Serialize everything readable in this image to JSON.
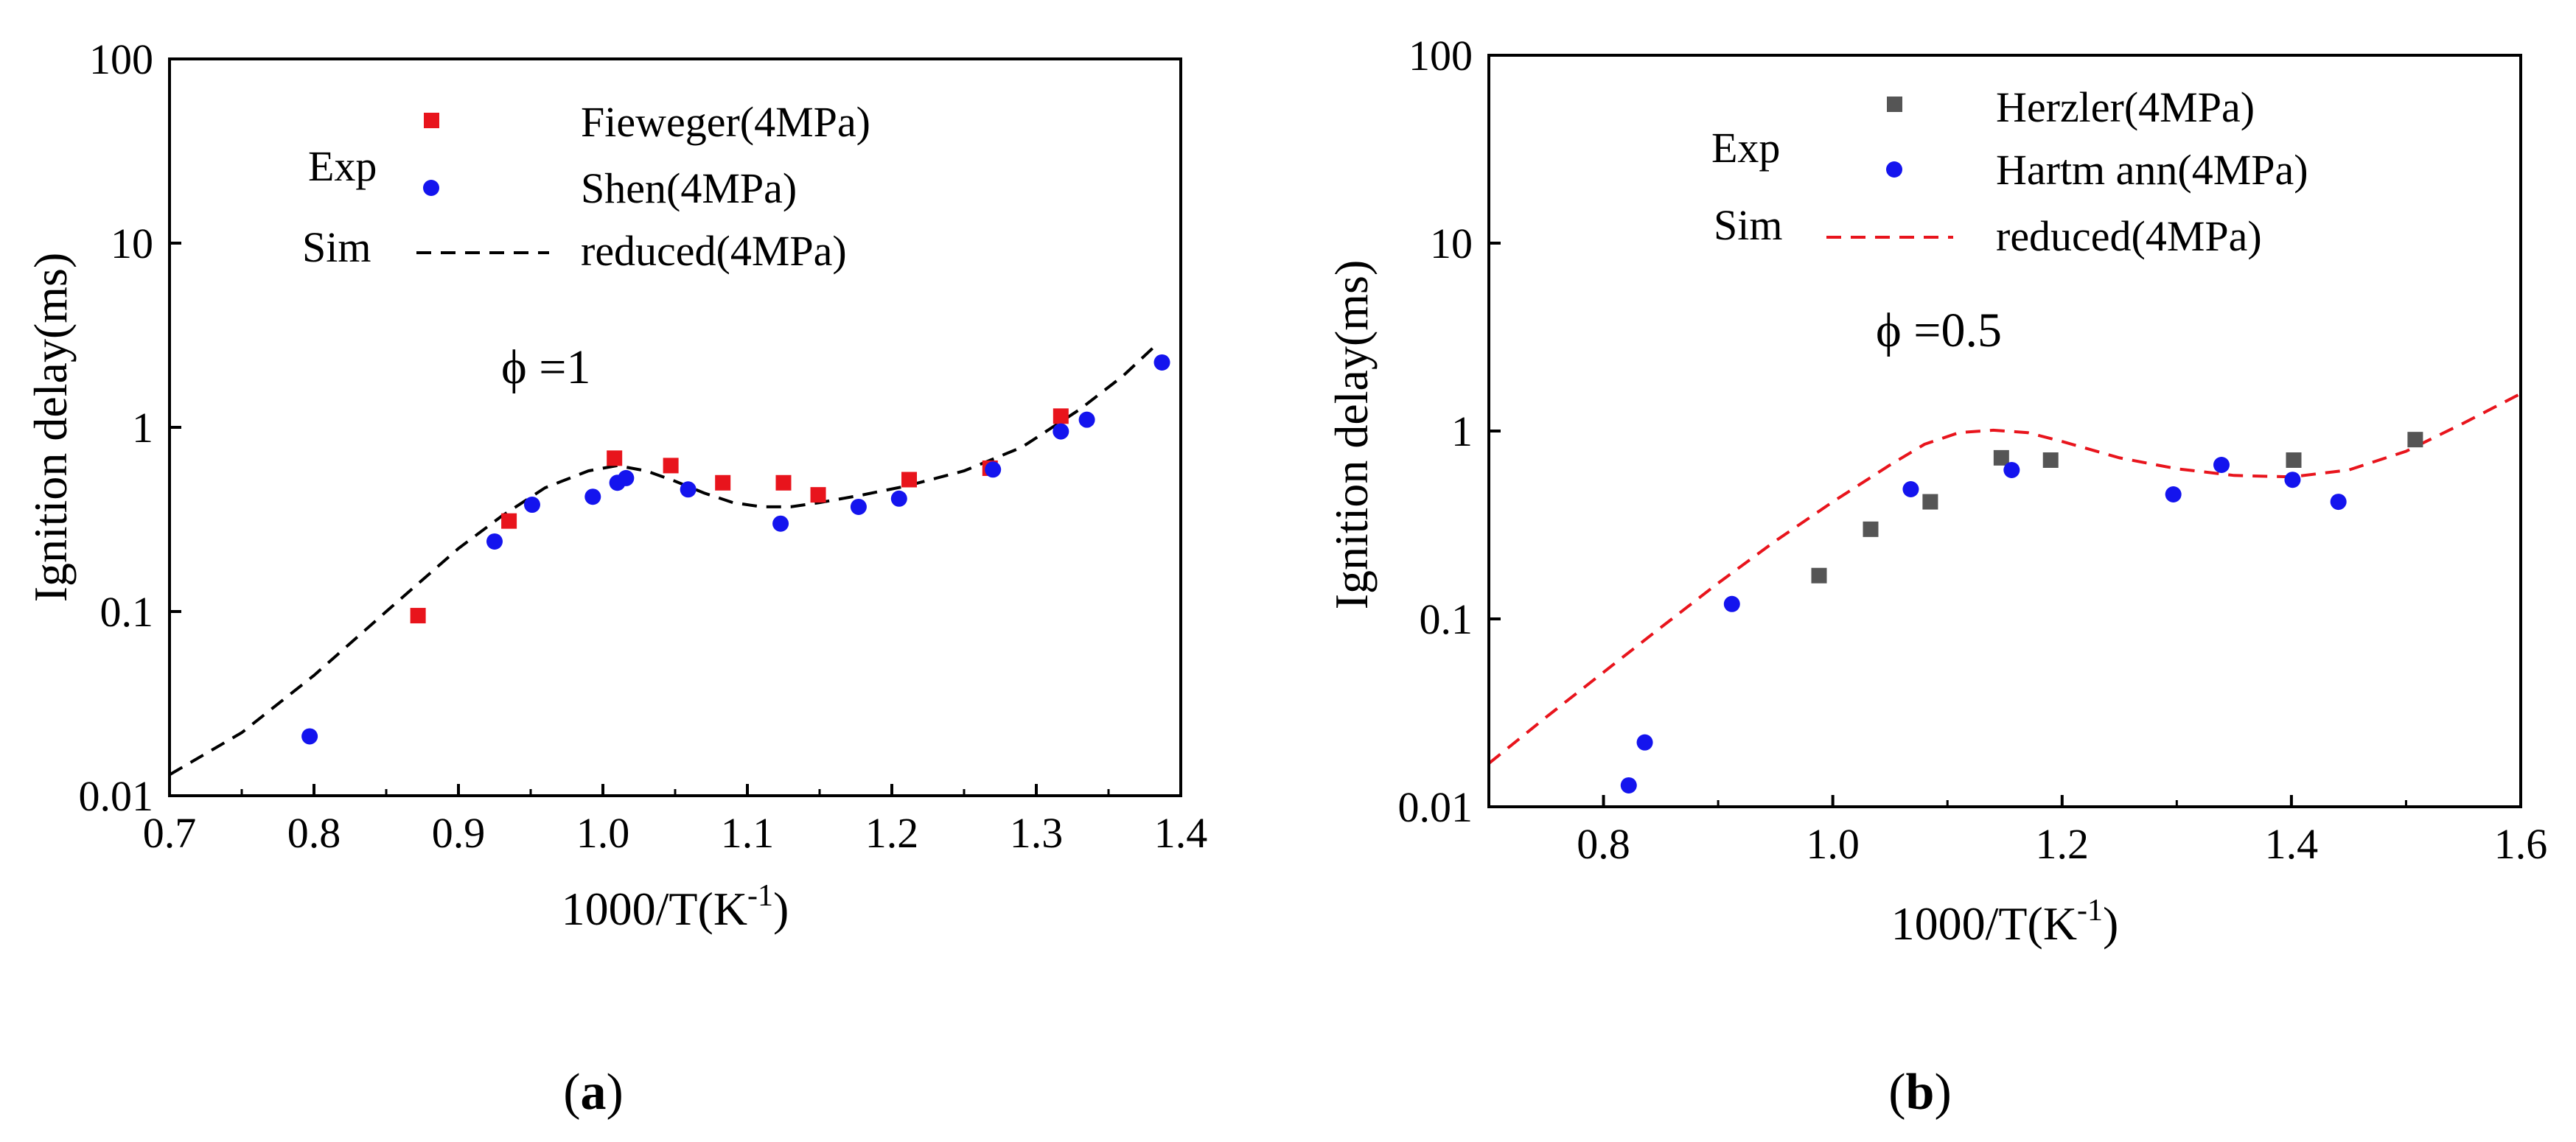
{
  "chart_data": [
    {
      "type": "scatter",
      "panel_label": "(a)",
      "xlabel": "1000/T(K",
      "xlabel_sup": "-1",
      "xlabel_end": ")",
      "ylabel": "Ignition delay(ms)",
      "yscale": "log",
      "xlim": [
        0.7,
        1.4
      ],
      "ylim": [
        0.01,
        100
      ],
      "xticks": [
        "0.7",
        "0.8",
        "0.9",
        "1.0",
        "1.1",
        "1.2",
        "1.3",
        "1.4"
      ],
      "yticks": [
        "0.01",
        "0.1",
        "1",
        "10",
        "100"
      ],
      "annotation": "ϕ =1",
      "legend": {
        "exp_label": "Exp",
        "sim_label": "Sim",
        "placement": "top-left"
      },
      "series": [
        {
          "name": "Fieweger(4MPa)",
          "kind": "exp",
          "marker": "square",
          "color": "#e8141c",
          "x": [
            0.872,
            0.935,
            1.008,
            1.047,
            1.083,
            1.125,
            1.149,
            1.212,
            1.268,
            1.317
          ],
          "y": [
            0.095,
            0.31,
            0.68,
            0.62,
            0.5,
            0.5,
            0.43,
            0.52,
            0.6,
            1.15
          ]
        },
        {
          "name": "Shen(4MPa)",
          "kind": "exp",
          "marker": "circle",
          "color": "#1414ee",
          "x": [
            0.797,
            0.925,
            0.951,
            0.993,
            1.01,
            1.016,
            1.059,
            1.123,
            1.177,
            1.205,
            1.27,
            1.317,
            1.335,
            1.387
          ],
          "y": [
            0.021,
            0.24,
            0.38,
            0.42,
            0.5,
            0.53,
            0.46,
            0.3,
            0.37,
            0.41,
            0.59,
            0.95,
            1.1,
            2.25
          ]
        },
        {
          "name": "reduced(4MPa)",
          "kind": "sim",
          "style": "dashed",
          "color": "#000000",
          "x": [
            0.7,
            0.75,
            0.8,
            0.85,
            0.9,
            0.93,
            0.96,
            0.99,
            1.01,
            1.03,
            1.05,
            1.07,
            1.09,
            1.11,
            1.13,
            1.15,
            1.18,
            1.21,
            1.25,
            1.29,
            1.33,
            1.36,
            1.385
          ],
          "y": [
            0.013,
            0.022,
            0.045,
            0.1,
            0.22,
            0.33,
            0.47,
            0.58,
            0.62,
            0.58,
            0.51,
            0.44,
            0.39,
            0.37,
            0.37,
            0.39,
            0.43,
            0.48,
            0.58,
            0.78,
            1.25,
            1.9,
            2.9
          ]
        }
      ]
    },
    {
      "type": "scatter",
      "panel_label": "(b)",
      "xlabel": "1000/T(K",
      "xlabel_sup": "-1",
      "xlabel_end": ")",
      "ylabel": "Ignition delay(ms)",
      "yscale": "log",
      "xlim": [
        0.7,
        1.6
      ],
      "ylim": [
        0.01,
        100
      ],
      "xticks": [
        "0.8",
        "1.0",
        "1.2",
        "1.4",
        "1.6"
      ],
      "yticks": [
        "0.01",
        "0.1",
        "1",
        "10",
        "100"
      ],
      "annotation": "ϕ =0.5",
      "legend": {
        "exp_label": "Exp",
        "sim_label": "Sim",
        "placement": "top-left"
      },
      "series": [
        {
          "name": "Herzler(4MPa)",
          "kind": "exp",
          "marker": "square",
          "color": "#555555",
          "x": [
            0.988,
            1.033,
            1.085,
            1.147,
            1.19,
            1.402,
            1.508
          ],
          "y": [
            0.17,
            0.3,
            0.42,
            0.72,
            0.7,
            0.7,
            0.9
          ]
        },
        {
          "name": "Hartm ann(4MPa)",
          "kind": "exp",
          "marker": "circle",
          "color": "#1414ee",
          "x": [
            0.822,
            0.836,
            0.912,
            1.068,
            1.156,
            1.297,
            1.339,
            1.401,
            1.441
          ],
          "y": [
            0.013,
            0.022,
            0.12,
            0.49,
            0.62,
            0.46,
            0.66,
            0.55,
            0.42
          ]
        },
        {
          "name": "reduced(4MPa)",
          "kind": "sim",
          "style": "dashed",
          "color": "#e8141c",
          "x": [
            0.7,
            0.75,
            0.8,
            0.85,
            0.9,
            0.95,
            1.0,
            1.05,
            1.08,
            1.11,
            1.14,
            1.17,
            1.2,
            1.25,
            1.3,
            1.35,
            1.4,
            1.45,
            1.5,
            1.55,
            1.6
          ],
          "y": [
            0.017,
            0.03,
            0.052,
            0.09,
            0.155,
            0.26,
            0.42,
            0.66,
            0.85,
            0.98,
            1.01,
            0.98,
            0.88,
            0.72,
            0.63,
            0.58,
            0.57,
            0.62,
            0.78,
            1.1,
            1.58
          ]
        }
      ]
    }
  ]
}
